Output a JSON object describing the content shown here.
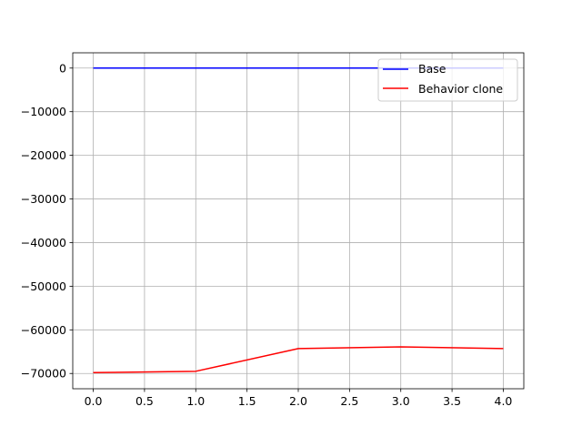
{
  "chart_data": {
    "type": "line",
    "title": "",
    "xlabel": "",
    "ylabel": "",
    "x": [
      0,
      1,
      2,
      3,
      4
    ],
    "xlim": [
      -0.2,
      4.2
    ],
    "ylim": [
      -73500,
      3500
    ],
    "xticks": [
      0.0,
      0.5,
      1.0,
      1.5,
      2.0,
      2.5,
      3.0,
      3.5,
      4.0
    ],
    "yticks": [
      0,
      -10000,
      -20000,
      -30000,
      -40000,
      -50000,
      -60000,
      -70000
    ],
    "xtick_labels": [
      "0.0",
      "0.5",
      "1.0",
      "1.5",
      "2.0",
      "2.5",
      "3.0",
      "3.5",
      "4.0"
    ],
    "ytick_labels": [
      "0",
      "−10000",
      "−20000",
      "−30000",
      "−40000",
      "−50000",
      "−60000",
      "−70000"
    ],
    "grid": true,
    "legend_position": "top-right",
    "series": [
      {
        "name": "Base",
        "color": "#0000ff",
        "values": [
          0,
          0,
          0,
          0,
          0
        ]
      },
      {
        "name": "Behavior clone",
        "color": "#ff0000",
        "values": [
          -69800,
          -69500,
          -64300,
          -63900,
          -64300
        ]
      }
    ]
  }
}
